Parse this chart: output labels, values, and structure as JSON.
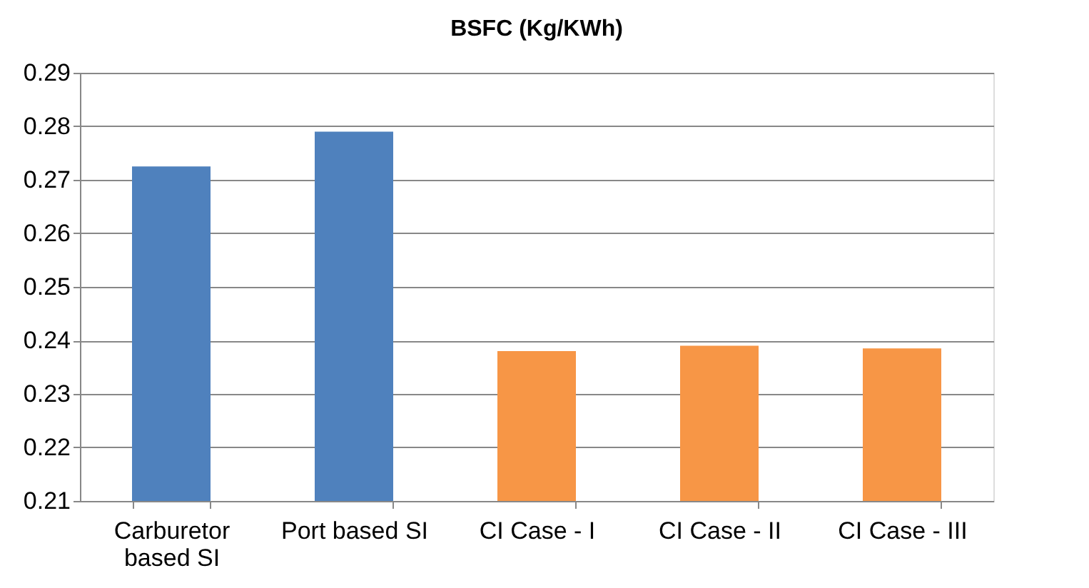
{
  "chart_data": {
    "type": "bar",
    "title": "BSFC (Kg/KWh)",
    "categories": [
      "Carburetor based SI",
      "Port based SI",
      "CI Case - I",
      "CI Case - II",
      "CI Case - III"
    ],
    "values": [
      0.2725,
      0.279,
      0.238,
      0.239,
      0.2385
    ],
    "colors": [
      "#4f81bd",
      "#4f81bd",
      "#f79646",
      "#f79646",
      "#f79646"
    ],
    "ylim": [
      0.21,
      0.29
    ],
    "yticks": [
      0.21,
      0.22,
      0.23,
      0.24,
      0.25,
      0.26,
      0.27,
      0.28,
      0.29
    ],
    "grid": "y"
  }
}
